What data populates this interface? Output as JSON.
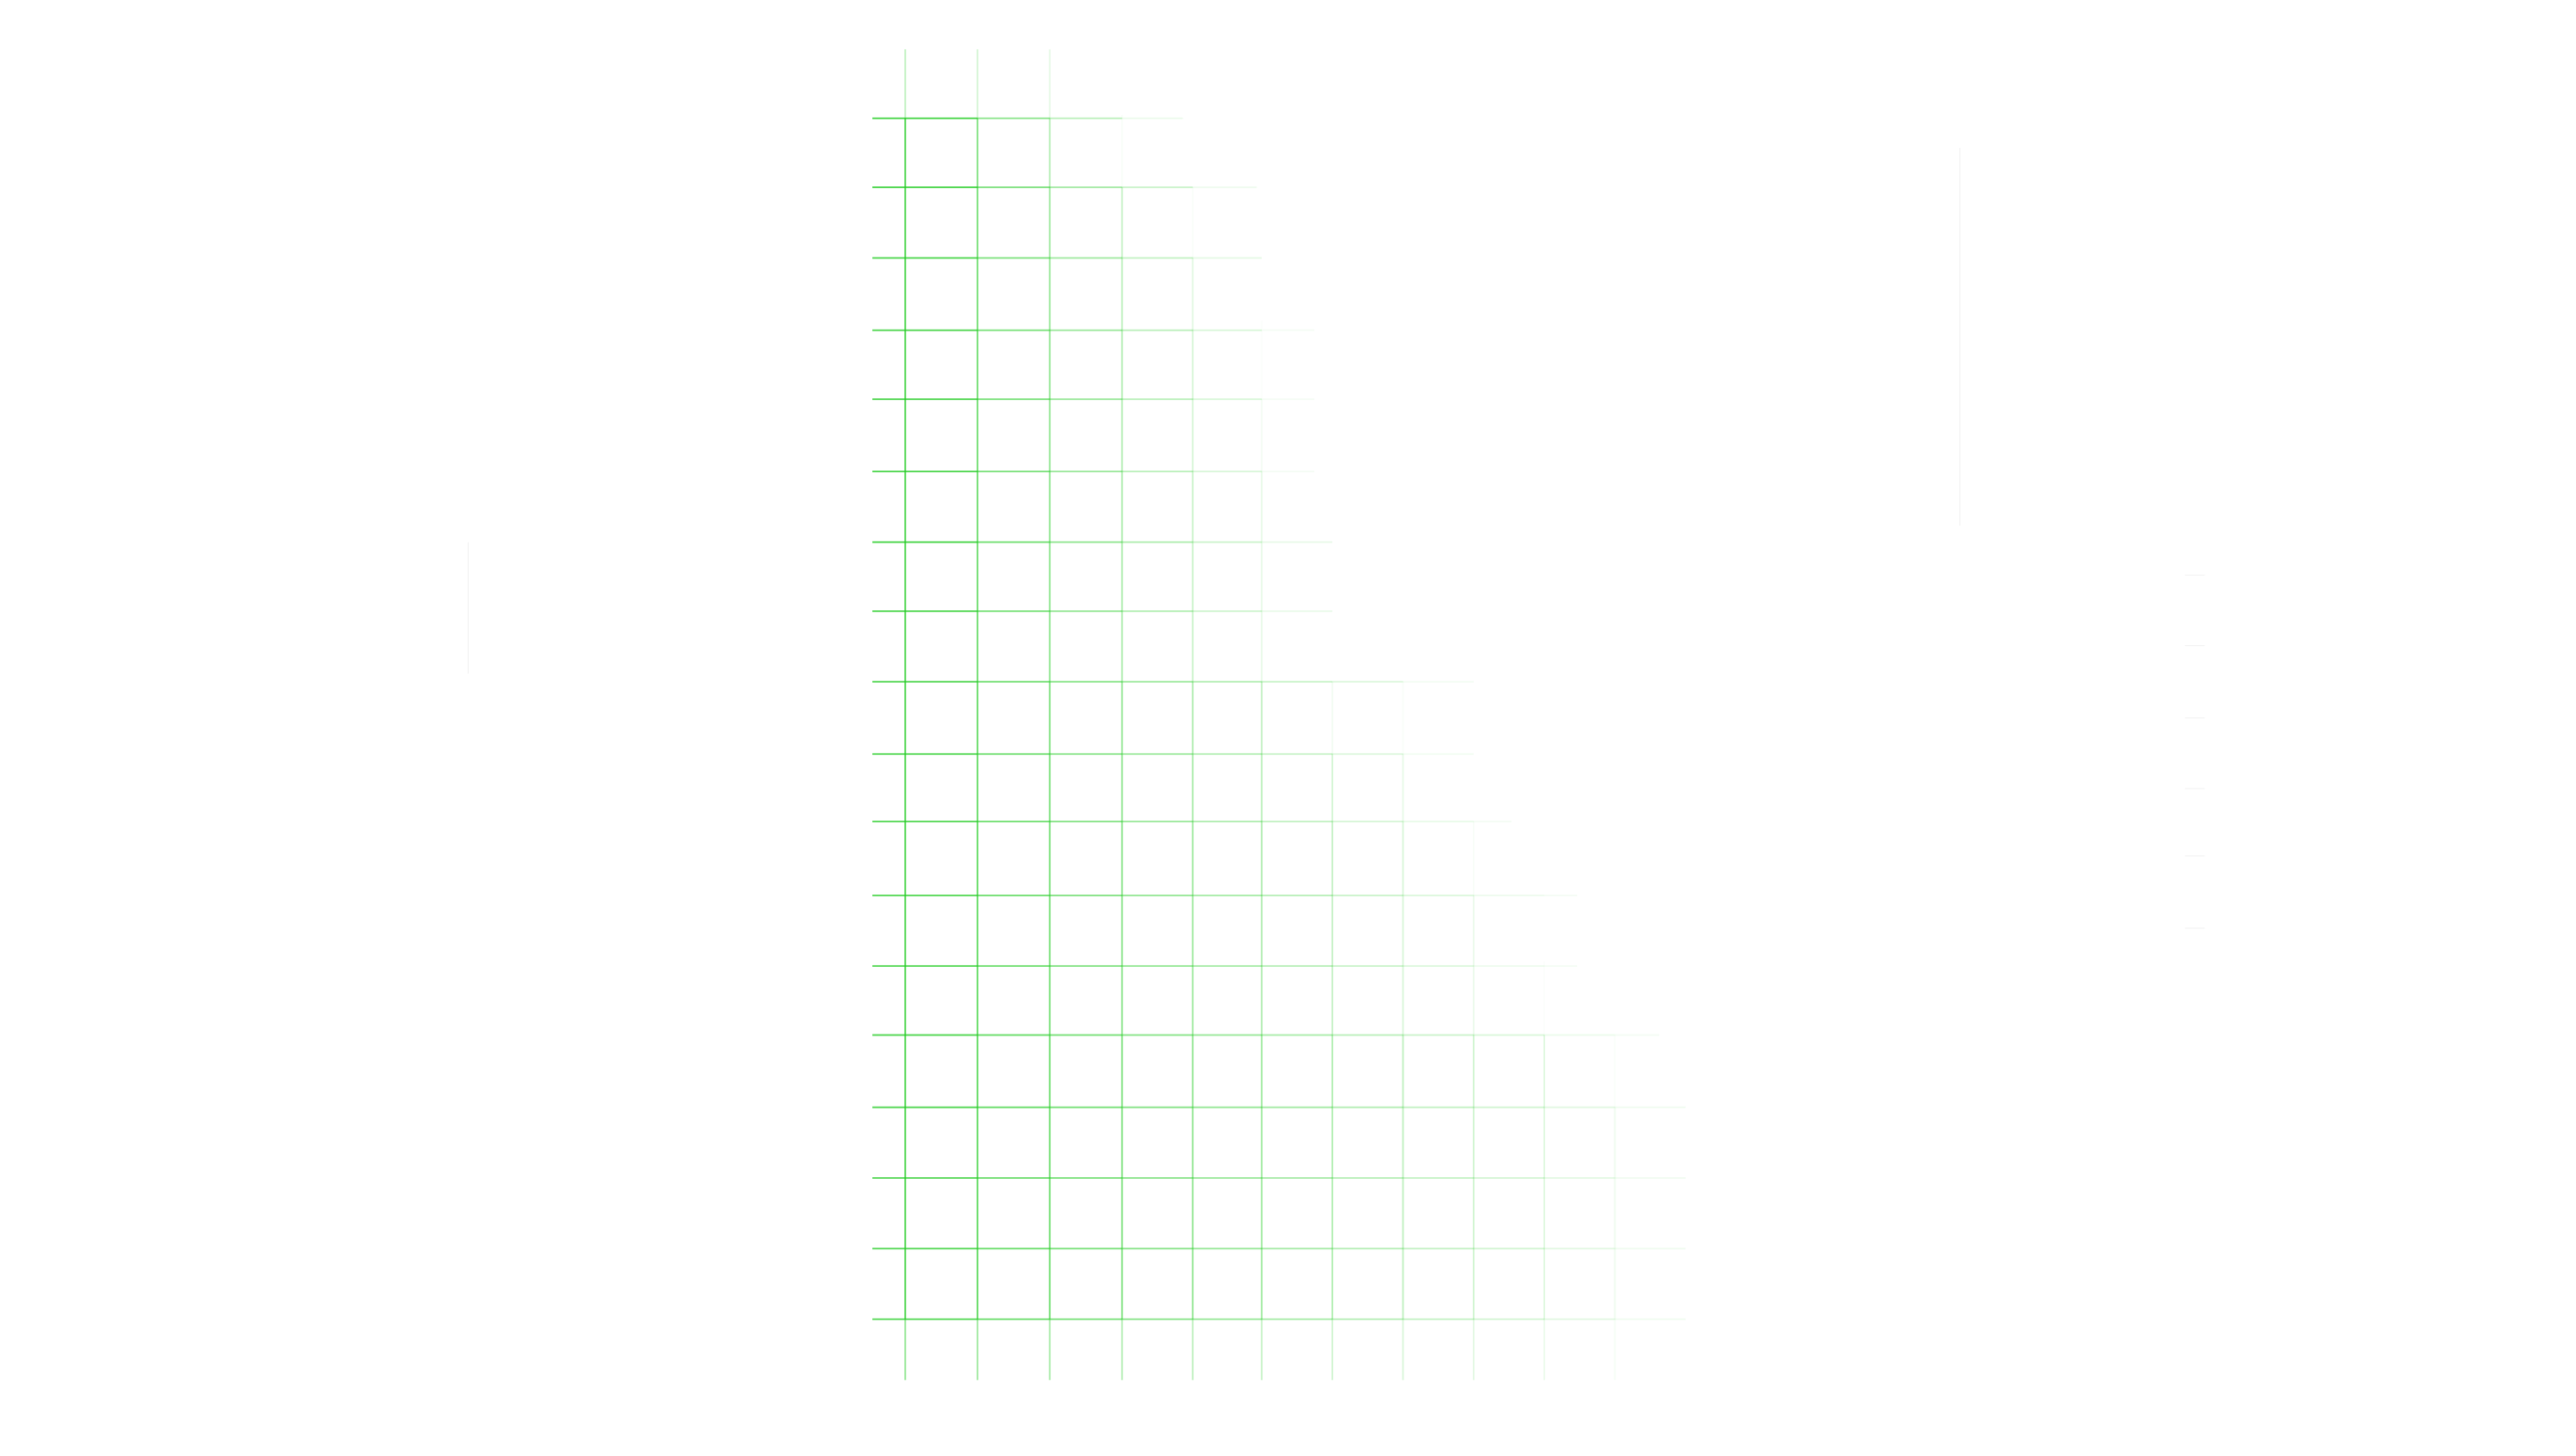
{
  "background_color": "#ffffff",
  "grid_line_color": "#22cc22",
  "faint_line_color": "#d8d8d8",
  "decoration": "fading-green-grid-pattern"
}
